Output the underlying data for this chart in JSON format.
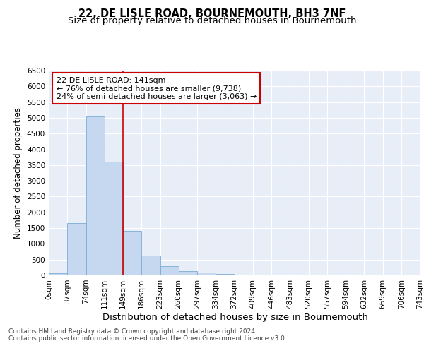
{
  "title_line1": "22, DE LISLE ROAD, BOURNEMOUTH, BH3 7NF",
  "title_line2": "Size of property relative to detached houses in Bournemouth",
  "xlabel": "Distribution of detached houses by size in Bournemouth",
  "ylabel": "Number of detached properties",
  "bar_color": "#c5d8f0",
  "bar_edge_color": "#7aadd4",
  "bar_values": [
    75,
    1650,
    5050,
    3600,
    1420,
    620,
    285,
    140,
    90,
    55,
    0,
    0,
    0,
    0,
    0,
    0,
    0,
    0,
    0,
    0
  ],
  "bin_labels": [
    "0sqm",
    "37sqm",
    "74sqm",
    "111sqm",
    "149sqm",
    "186sqm",
    "223sqm",
    "260sqm",
    "297sqm",
    "334sqm",
    "372sqm",
    "409sqm",
    "446sqm",
    "483sqm",
    "520sqm",
    "557sqm",
    "594sqm",
    "632sqm",
    "669sqm",
    "706sqm",
    "743sqm"
  ],
  "ylim": [
    0,
    6500
  ],
  "yticks": [
    0,
    500,
    1000,
    1500,
    2000,
    2500,
    3000,
    3500,
    4000,
    4500,
    5000,
    5500,
    6000,
    6500
  ],
  "vline_x": 3.5,
  "vline_color": "#cc0000",
  "annotation_text": "22 DE LISLE ROAD: 141sqm\n← 76% of detached houses are smaller (9,738)\n24% of semi-detached houses are larger (3,063) →",
  "annotation_box_color": "#ffffff",
  "annotation_box_edgecolor": "#cc0000",
  "footer_line1": "Contains HM Land Registry data © Crown copyright and database right 2024.",
  "footer_line2": "Contains public sector information licensed under the Open Government Licence v3.0.",
  "background_color": "#e8eef8",
  "grid_color": "#ffffff",
  "title_fontsize": 10.5,
  "subtitle_fontsize": 9.5,
  "tick_fontsize": 7.5,
  "ylabel_fontsize": 8.5,
  "xlabel_fontsize": 9.5,
  "footer_fontsize": 6.5
}
